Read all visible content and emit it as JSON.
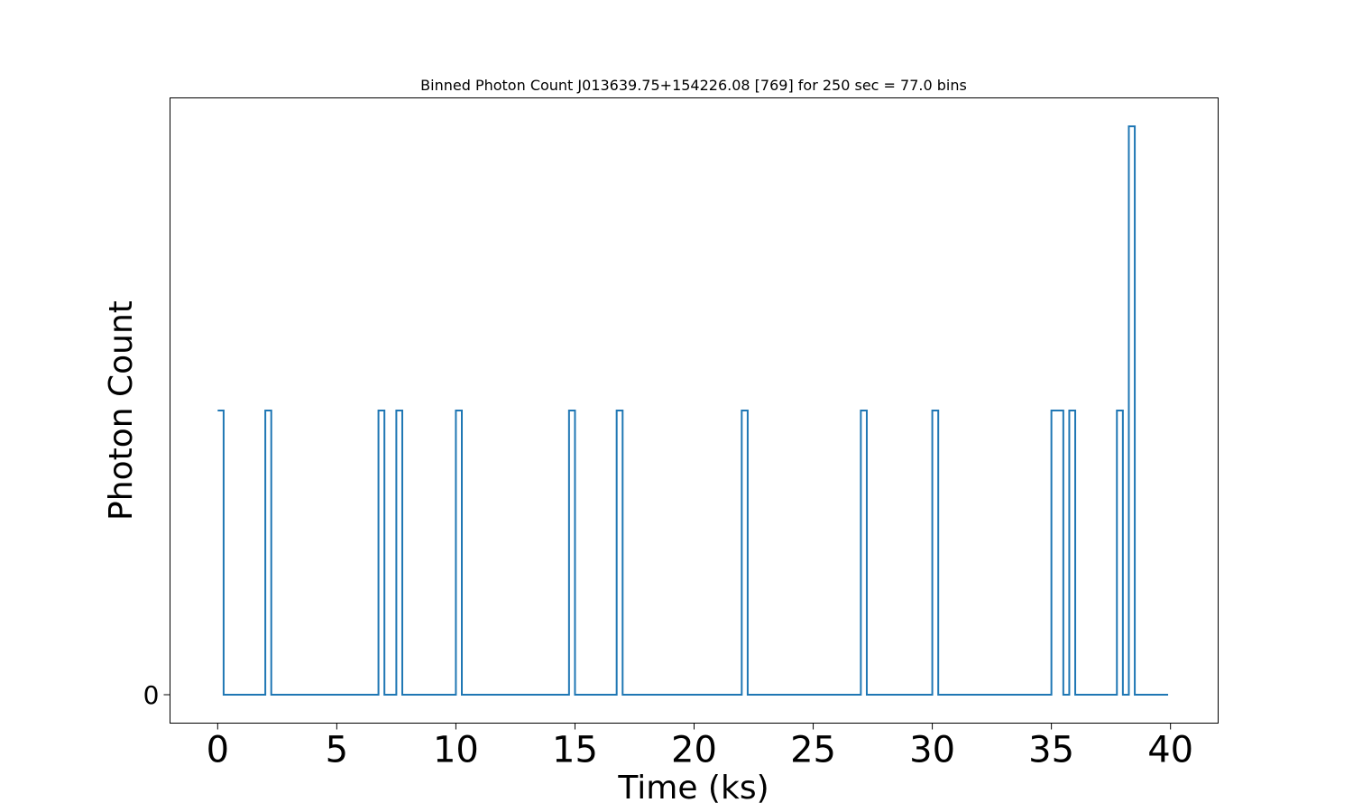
{
  "chart_data": {
    "type": "line",
    "drawstyle": "steps-post",
    "title": "Binned Photon Count J013639.75+154226.08 [769] for 250 sec = 77.0 bins",
    "xlabel": "Time (ks)",
    "ylabel": "Photon Count",
    "xlim": [
      -2,
      42
    ],
    "ylim": [
      -0.1,
      2.1
    ],
    "xticks": [
      0,
      5,
      10,
      15,
      20,
      25,
      30,
      35,
      40
    ],
    "xtick_labels": [
      "0",
      "5",
      "10",
      "15",
      "20",
      "25",
      "30",
      "35",
      "40"
    ],
    "yticks": [
      0
    ],
    "ytick_labels": [
      "0"
    ],
    "grid": false,
    "color": "#1f77b4",
    "series": [
      {
        "x": [
          0.0,
          0.25,
          2.0,
          2.25,
          6.75,
          7.0,
          7.25,
          7.5,
          7.75,
          10.0,
          10.25,
          14.75,
          15.0,
          16.75,
          17.0,
          22.0,
          22.25,
          27.0,
          27.25,
          30.0,
          30.25,
          35.0,
          35.25,
          35.5,
          35.75,
          36.0,
          37.75,
          38.0,
          38.25,
          38.5,
          39.9
        ],
        "y": [
          1,
          0,
          1,
          0,
          1,
          0,
          0,
          1,
          0,
          1,
          0,
          1,
          0,
          1,
          0,
          1,
          0,
          1,
          0,
          1,
          0,
          1,
          1,
          0,
          1,
          0,
          1,
          0,
          2,
          0,
          0
        ]
      }
    ]
  }
}
